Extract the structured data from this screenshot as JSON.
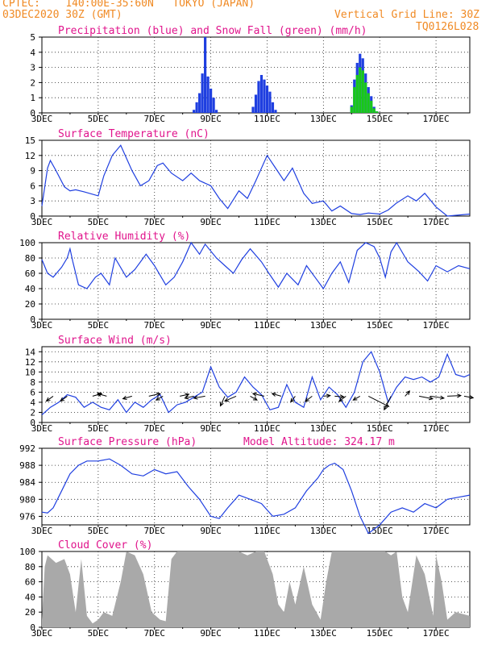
{
  "header": {
    "line1": "CPTEC:    140:00E-35:60N   TOKYO (JAPAN)",
    "line2": "03DEC2020 30Z (GMT)",
    "grid_note": "Vertical Grid Line: 30Z",
    "code": "TQ0126L028"
  },
  "colors": {
    "header": "#f08a24",
    "title": "#e0148c",
    "line": "#1f3fe0",
    "rain": "#1f3fe0",
    "snow": "#18c818",
    "cloud": "#a9a9a9",
    "arrow": "#000000"
  },
  "x_axis": {
    "ticks": [
      "3DEC",
      "5DEC",
      "7DEC",
      "9DEC",
      "11DEC",
      "13DEC",
      "15DEC",
      "17DEC"
    ],
    "tick_days": [
      0,
      2,
      4,
      6,
      8,
      10,
      12,
      14
    ],
    "range": [
      0,
      15.2
    ]
  },
  "chart_data": [
    {
      "type": "bar",
      "title": "Precipitation (blue) and Snow Fall (green) (mm/h)",
      "ylim": [
        0,
        5
      ],
      "yticks": [
        "0",
        "1",
        "2",
        "3",
        "4",
        "5"
      ],
      "series": [
        {
          "name": "blue",
          "x": [
            5.4,
            5.5,
            5.6,
            5.7,
            5.8,
            5.9,
            6.0,
            6.1,
            6.2,
            7.5,
            7.6,
            7.7,
            7.8,
            7.9,
            8.0,
            8.1,
            8.2,
            8.3,
            11.0,
            11.1,
            11.2,
            11.3,
            11.4,
            11.5,
            11.6,
            11.7,
            11.8,
            11.9
          ],
          "values": [
            0.2,
            0.7,
            1.3,
            2.6,
            5.0,
            2.4,
            1.6,
            1.0,
            0.2,
            0.4,
            1.2,
            2.1,
            2.5,
            2.2,
            1.8,
            1.4,
            0.7,
            0.2,
            0.5,
            2.2,
            3.3,
            3.9,
            3.6,
            2.6,
            1.7,
            1.1,
            0.4,
            0.1
          ]
        },
        {
          "name": "green",
          "x": [
            11.0,
            11.1,
            11.2,
            11.3,
            11.4,
            11.5,
            11.6,
            11.7,
            11.8,
            11.9
          ],
          "values": [
            0.4,
            1.7,
            2.5,
            3.0,
            2.8,
            2.0,
            1.3,
            0.8,
            0.3,
            0.1
          ]
        }
      ]
    },
    {
      "type": "line",
      "title": "Surface Temperature (nC)",
      "ylim": [
        0,
        15
      ],
      "yticks": [
        "0",
        "3",
        "6",
        "9",
        "12",
        "15"
      ],
      "x": [
        0,
        0.2,
        0.3,
        0.5,
        0.8,
        1.0,
        1.2,
        1.5,
        2.0,
        2.2,
        2.5,
        2.8,
        3.2,
        3.5,
        3.8,
        4.1,
        4.3,
        4.6,
        5.0,
        5.3,
        5.6,
        6.0,
        6.3,
        6.6,
        7.0,
        7.3,
        7.6,
        8.0,
        8.3,
        8.6,
        8.9,
        9.3,
        9.6,
        10.0,
        10.3,
        10.6,
        11.0,
        11.3,
        11.6,
        12.0,
        12.3,
        12.6,
        13.0,
        13.3,
        13.6,
        14.0,
        14.4,
        15.2
      ],
      "values": [
        2.0,
        9.5,
        11.0,
        9.0,
        5.8,
        5.0,
        5.2,
        4.8,
        4.0,
        8.0,
        12.0,
        14.0,
        9.0,
        6.0,
        7.0,
        10.0,
        10.5,
        8.5,
        7.0,
        8.5,
        7.0,
        6.0,
        3.5,
        1.5,
        5.0,
        3.5,
        7.0,
        12.0,
        9.5,
        7.0,
        9.5,
        4.5,
        2.5,
        3.0,
        1.0,
        2.0,
        0.5,
        0.3,
        0.6,
        0.4,
        1.2,
        2.6,
        4.0,
        3.0,
        4.5,
        1.8,
        0.0,
        0.4
      ]
    },
    {
      "type": "line",
      "title": "Relative Humidity (%)",
      "ylim": [
        0,
        100
      ],
      "yticks": [
        "0",
        "20",
        "40",
        "60",
        "80",
        "100"
      ],
      "x": [
        0,
        0.2,
        0.4,
        0.7,
        0.9,
        1.0,
        1.1,
        1.3,
        1.6,
        1.9,
        2.1,
        2.4,
        2.6,
        3.0,
        3.3,
        3.7,
        4.0,
        4.4,
        4.7,
        5.0,
        5.3,
        5.6,
        5.8,
        6.2,
        6.5,
        6.8,
        7.1,
        7.4,
        7.8,
        8.1,
        8.4,
        8.7,
        9.1,
        9.4,
        9.7,
        10.0,
        10.3,
        10.6,
        10.9,
        11.2,
        11.5,
        11.8,
        12.0,
        12.2,
        12.4,
        12.6,
        13.0,
        13.4,
        13.7,
        14.0,
        14.4,
        14.8,
        15.2
      ],
      "values": [
        78,
        60,
        55,
        68,
        80,
        92,
        75,
        45,
        40,
        55,
        60,
        45,
        80,
        55,
        65,
        85,
        70,
        45,
        55,
        75,
        100,
        85,
        98,
        80,
        70,
        60,
        78,
        92,
        75,
        58,
        42,
        60,
        45,
        70,
        55,
        40,
        60,
        75,
        48,
        90,
        100,
        95,
        80,
        55,
        88,
        100,
        75,
        62,
        50,
        70,
        62,
        70,
        66
      ]
    },
    {
      "type": "line",
      "title": "Surface Wind (m/s)",
      "ylim": [
        0,
        15
      ],
      "yticks": [
        "0",
        "2",
        "4",
        "6",
        "8",
        "10",
        "12",
        "14"
      ],
      "x": [
        0,
        0.3,
        0.6,
        0.9,
        1.2,
        1.5,
        1.8,
        2.1,
        2.4,
        2.7,
        3.0,
        3.3,
        3.6,
        3.9,
        4.2,
        4.5,
        4.8,
        5.1,
        5.4,
        5.7,
        6.0,
        6.3,
        6.6,
        6.9,
        7.2,
        7.5,
        7.8,
        8.1,
        8.4,
        8.7,
        9.0,
        9.3,
        9.6,
        9.9,
        10.2,
        10.5,
        10.8,
        11.1,
        11.4,
        11.7,
        12.0,
        12.3,
        12.6,
        12.9,
        13.2,
        13.5,
        13.8,
        14.1,
        14.4,
        14.7,
        15.0,
        15.2
      ],
      "values": [
        1.5,
        3.0,
        4.0,
        5.5,
        5.0,
        3.0,
        4.0,
        3.0,
        2.5,
        4.5,
        2.0,
        4.0,
        3.0,
        4.5,
        5.5,
        2.0,
        3.5,
        4.0,
        5.0,
        6.0,
        11.0,
        7.0,
        5.0,
        6.0,
        9.0,
        7.0,
        5.5,
        2.5,
        3.0,
        7.5,
        4.0,
        3.0,
        9.0,
        4.5,
        7.0,
        5.5,
        3.0,
        6.0,
        12.0,
        14.0,
        10.0,
        4.0,
        7.0,
        9.0,
        8.5,
        9.0,
        8.0,
        9.0,
        13.5,
        9.5,
        9.0,
        9.5
      ],
      "arrows": {
        "x": [
          0.4,
          0.9,
          1.8,
          2.3,
          3.2,
          3.8,
          4.3,
          4.9,
          5.4,
          5.8,
          6.5,
          6.9,
          7.4,
          7.9,
          8.5,
          9.0,
          9.6,
          10.0,
          10.4,
          10.8,
          11.3,
          11.6,
          12.4,
          12.9,
          13.4,
          13.8,
          14.4,
          15.0
        ],
        "dx": [
          -0.3,
          -0.3,
          0.4,
          -0.4,
          -0.4,
          0.5,
          -0.3,
          0.4,
          -0.4,
          -0.5,
          -0.2,
          -0.5,
          0.3,
          -0.5,
          -0.4,
          -0.2,
          -0.3,
          0.3,
          0.4,
          -0.3,
          -0.3,
          0.9,
          -0.3,
          0.2,
          0.6,
          0.6,
          0.6,
          0.4
        ],
        "dy": [
          -1.5,
          -1.5,
          0.8,
          0.8,
          -0.8,
          0.8,
          -1.2,
          0.6,
          -0.6,
          -0.6,
          -3.0,
          -1.5,
          -1.2,
          0.8,
          0.8,
          -1.8,
          -1.6,
          0.2,
          -0.2,
          -1.6,
          -1.2,
          -3.2,
          -4.2,
          1.6,
          -0.8,
          -0.6,
          0.2,
          -0.5
        ]
      }
    },
    {
      "type": "line",
      "title": "Surface Pressure (hPa)",
      "annotation": "Model Altitude: 324.17 m",
      "ylim": [
        974,
        992
      ],
      "yticks": [
        "976",
        "980",
        "984",
        "988",
        "992"
      ],
      "x": [
        0,
        0.2,
        0.4,
        0.7,
        1.0,
        1.3,
        1.6,
        2.0,
        2.4,
        2.8,
        3.2,
        3.6,
        4.0,
        4.4,
        4.8,
        5.2,
        5.6,
        6.0,
        6.3,
        6.6,
        7.0,
        7.4,
        7.8,
        8.2,
        8.6,
        9.0,
        9.4,
        9.8,
        10.0,
        10.2,
        10.4,
        10.7,
        11.0,
        11.3,
        11.6,
        12.0,
        12.4,
        12.8,
        13.2,
        13.6,
        14.0,
        14.4,
        14.8,
        15.2
      ],
      "values": [
        977,
        976.8,
        978,
        982,
        986,
        988,
        989,
        989,
        989.5,
        988,
        986,
        985.5,
        987,
        986,
        986.5,
        983,
        980,
        976,
        975.5,
        978,
        981,
        980,
        979,
        976,
        976.5,
        978,
        982,
        985,
        987,
        988,
        988.5,
        987,
        982,
        976,
        972,
        974,
        977,
        978,
        977,
        979,
        978,
        980,
        980.5,
        981
      ]
    },
    {
      "type": "area",
      "title": "Cloud Cover (%)",
      "ylim": [
        0,
        100
      ],
      "yticks": [
        "0",
        "20",
        "40",
        "60",
        "80",
        "100"
      ],
      "x": [
        0,
        0.1,
        0.2,
        0.5,
        0.8,
        1.0,
        1.2,
        1.4,
        1.6,
        1.8,
        2.0,
        2.2,
        2.5,
        2.8,
        3.0,
        3.3,
        3.6,
        3.9,
        4.2,
        4.4,
        4.6,
        4.8,
        5.0,
        5.3,
        5.6,
        5.8,
        6.0,
        6.4,
        6.8,
        7.0,
        7.3,
        7.6,
        7.9,
        8.2,
        8.4,
        8.6,
        8.8,
        9.0,
        9.3,
        9.6,
        9.9,
        10.1,
        10.3,
        10.6,
        10.9,
        11.2,
        11.5,
        11.8,
        12.0,
        12.2,
        12.4,
        12.6,
        12.8,
        13.0,
        13.3,
        13.6,
        13.9,
        14.0,
        14.2,
        14.4,
        14.7,
        15.2
      ],
      "values": [
        10,
        80,
        95,
        85,
        90,
        70,
        20,
        90,
        15,
        5,
        10,
        20,
        15,
        60,
        100,
        95,
        70,
        20,
        10,
        8,
        90,
        100,
        100,
        100,
        100,
        100,
        100,
        100,
        100,
        100,
        95,
        100,
        100,
        70,
        30,
        20,
        60,
        30,
        80,
        30,
        10,
        60,
        100,
        100,
        100,
        100,
        100,
        100,
        100,
        100,
        95,
        100,
        40,
        20,
        95,
        70,
        15,
        95,
        60,
        10,
        20,
        15
      ]
    }
  ]
}
